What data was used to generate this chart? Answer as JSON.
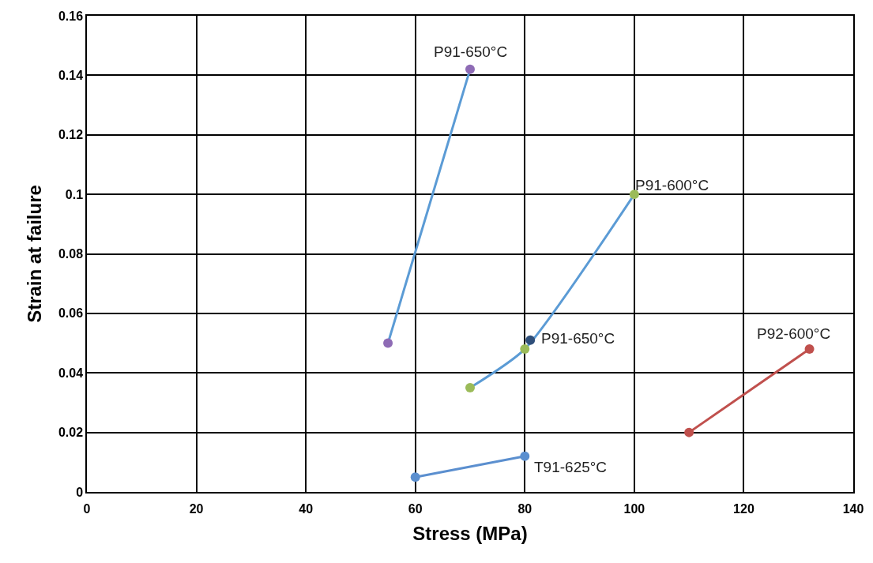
{
  "chart_data": {
    "type": "line",
    "xlabel": "Stress (MPa)",
    "ylabel": "Strain at failure",
    "xlim": [
      0,
      140
    ],
    "xticks": [
      0,
      20,
      40,
      60,
      80,
      100,
      120,
      140
    ],
    "ylim": [
      0,
      0.16
    ],
    "yticks": [
      0,
      0.02,
      0.04,
      0.06,
      0.08,
      0.1,
      0.12,
      0.14,
      0.16
    ],
    "grid": true,
    "marker": "circle",
    "line_style": "solid",
    "series": [
      {
        "x": [
          55,
          70
        ],
        "values": [
          0.05,
          0.142
        ],
        "color": "#5b9bd5",
        "colors": [
          "#8e6bb5",
          "#8e6bb5"
        ]
      },
      {
        "x": [
          70,
          80,
          100
        ],
        "values": [
          0.035,
          0.048,
          0.1
        ],
        "color": "#5b9bd5",
        "colors": [
          "#9bbb59",
          "#9bbb59",
          "#9bbb59"
        ]
      },
      {
        "type": "scatter",
        "x": [
          81
        ],
        "values": [
          0.051
        ],
        "color": "#2f4f7a"
      },
      {
        "x": [
          60,
          80
        ],
        "values": [
          0.005,
          0.012
        ],
        "color": "#5b8fcf"
      },
      {
        "x": [
          110,
          132
        ],
        "values": [
          0.02,
          0.048
        ],
        "color": "#c0504d"
      }
    ],
    "annotations": [
      {
        "text": "P91-650°C",
        "x": 70,
        "y": 0.142
      },
      {
        "text": "P91-600°C",
        "x": 100,
        "y": 0.1
      },
      {
        "text": "P91-650°C",
        "x": 81,
        "y": 0.051
      },
      {
        "text": "T91-625°C",
        "x": 80,
        "y": 0.012
      },
      {
        "text": "P92-600°C",
        "x": 132,
        "y": 0.048
      }
    ]
  }
}
